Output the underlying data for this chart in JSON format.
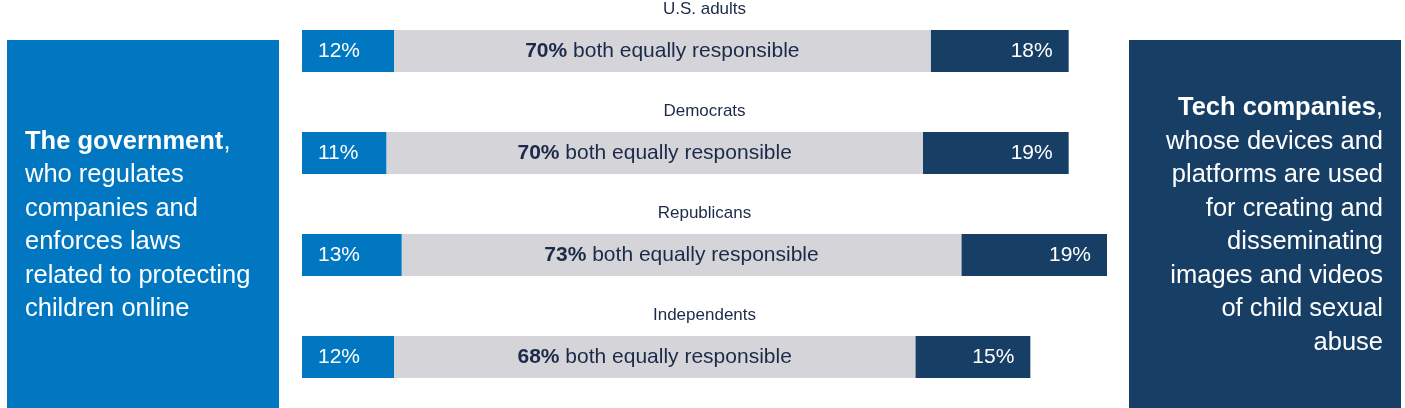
{
  "chart_data": {
    "type": "bar",
    "orientation": "horizontal",
    "stacked": true,
    "relative": false,
    "tick_labels": false,
    "categories": [
      "U.S. adults",
      "Democrats",
      "Republicans",
      "Independents"
    ],
    "xlim": [
      0,
      105
    ],
    "series": [
      {
        "name": "The government, who regulates companies and enforces laws related to protecting children online",
        "color": "#0077c0",
        "values": [
          12,
          11,
          13,
          12
        ],
        "value_labels": [
          "12%",
          "11%",
          "13%",
          "12%"
        ]
      },
      {
        "color": "#d4d4d9",
        "values": [
          70,
          70,
          73,
          68
        ],
        "value_labels": [
          "70% both equally responsible",
          "70% both equally responsible",
          "73% both equally responsible",
          "68% both equally responsible"
        ]
      },
      {
        "name": "Tech companies, whose devices and platforms are used for creating and disseminating images and videos of child sexual abuse",
        "color": "#173f66",
        "values": [
          18,
          19,
          19,
          15
        ],
        "value_labels": [
          "18%",
          "19%",
          "19%",
          "15%"
        ]
      }
    ]
  }
}
